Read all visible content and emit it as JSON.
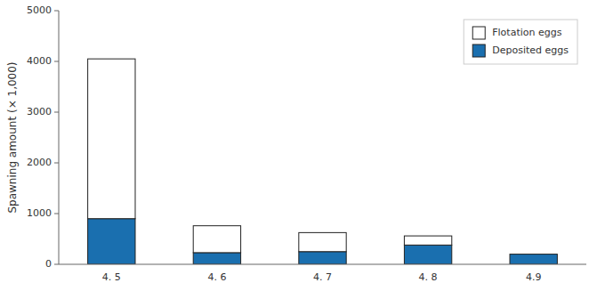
{
  "chart_data": {
    "type": "bar",
    "stacked": true,
    "categories": [
      "4. 5",
      "4. 6",
      "4. 7",
      "4. 8",
      "4.9"
    ],
    "series": [
      {
        "name": "Deposited eggs",
        "color": "#1a6faf",
        "values": [
          900,
          230,
          250,
          380,
          200
        ]
      },
      {
        "name": "Flotation eggs",
        "color": "#ffffff",
        "values": [
          3150,
          530,
          375,
          180,
          0
        ]
      }
    ],
    "ylabel": "Spawning amount (× 1,000)",
    "ylim": [
      0,
      5000
    ],
    "yticks": [
      0,
      1000,
      2000,
      3000,
      4000,
      5000
    ],
    "grid": false,
    "legend": "upper right"
  }
}
